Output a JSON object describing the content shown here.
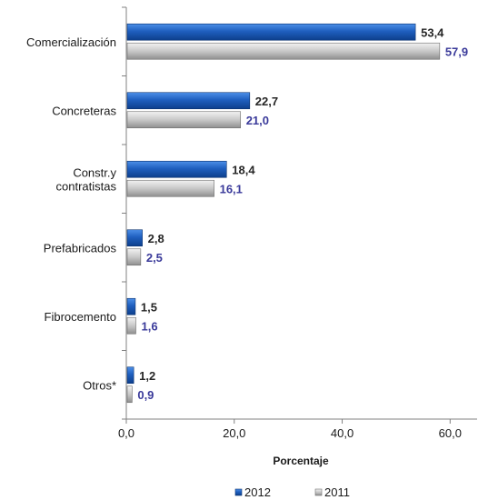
{
  "chart_data": {
    "type": "bar",
    "orientation": "horizontal",
    "categories": [
      "Comercialización",
      "Concreteras",
      "Constr.y contratistas",
      "Prefabricados",
      "Fibrocemento",
      "Otros*"
    ],
    "category_lines": [
      [
        "Comercialización"
      ],
      [
        "Concreteras"
      ],
      [
        "Constr.y",
        "contratistas"
      ],
      [
        "Prefabricados"
      ],
      [
        "Fibrocemento"
      ],
      [
        "Otros*"
      ]
    ],
    "series": [
      {
        "name": "2012",
        "values": [
          53.4,
          22.7,
          18.4,
          2.8,
          1.5,
          1.2
        ],
        "labels": [
          "53,4",
          "22,7",
          "18,4",
          "2,8",
          "1,5",
          "1,2"
        ],
        "color": "#1f5fbf",
        "label_color": "#262626"
      },
      {
        "name": "2011",
        "values": [
          57.9,
          21.0,
          16.1,
          2.5,
          1.6,
          0.9
        ],
        "labels": [
          "57,9",
          "21,0",
          "16,1",
          "2,5",
          "1,6",
          "0,9"
        ],
        "color": "#c8c8c8",
        "label_color": "#3a3a9a"
      }
    ],
    "xticks": [
      "0,0",
      "20,0",
      "40,0",
      "60,0"
    ],
    "xlim": [
      0,
      65
    ],
    "xlabel": "Porcentaje",
    "ylabel": "",
    "title": "",
    "grid": false,
    "legend_position": "bottom"
  }
}
